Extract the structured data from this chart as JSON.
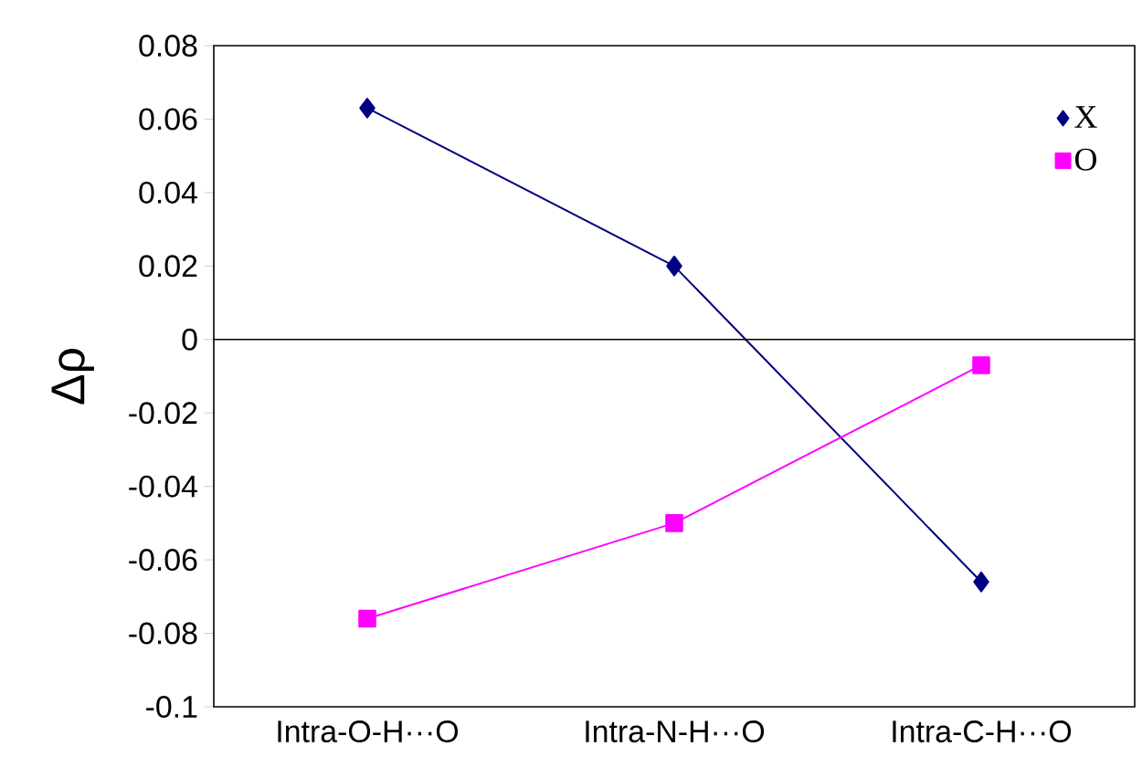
{
  "chart_data": {
    "type": "line",
    "ylabel": "Δρ",
    "categories": [
      "Intra-O-H···O",
      "Intra-N-H···O",
      "Intra-C-H···O"
    ],
    "series": [
      {
        "name": "X",
        "color": "#000080",
        "marker": "diamond",
        "values": [
          0.063,
          0.02,
          -0.066
        ]
      },
      {
        "name": "O",
        "color": "#ff00ff",
        "marker": "square",
        "values": [
          -0.076,
          -0.05,
          -0.007
        ]
      }
    ],
    "ylim": [
      -0.1,
      0.08
    ],
    "yticks": [
      -0.1,
      -0.08,
      -0.06,
      -0.04,
      -0.02,
      0,
      0.02,
      0.04,
      0.06,
      0.08
    ],
    "ref_lines": [
      {
        "axis": "y",
        "value": 0,
        "color": "#000000"
      }
    ],
    "grid": false,
    "legend": "top right",
    "line_style": "solid"
  }
}
